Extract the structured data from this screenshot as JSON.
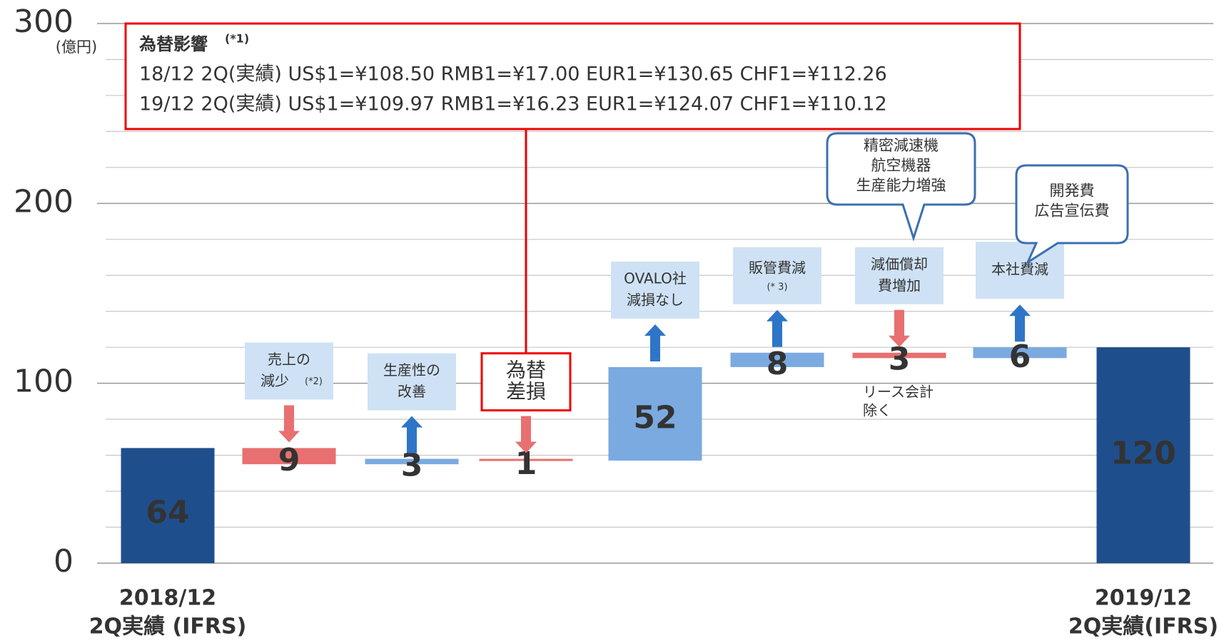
{
  "chart_data": {
    "type": "waterfall",
    "unit_label": "(億円)",
    "categories": [
      [
        "2018/12",
        "2Q実績 (IFRS)"
      ],
      null,
      null,
      null,
      null,
      null,
      null,
      null,
      [
        "2019/12",
        "2Q実績(IFRS)"
      ]
    ],
    "values": [
      64,
      -9,
      3,
      -1,
      52,
      8,
      -3,
      6,
      120
    ],
    "value_labels": [
      "64",
      "9",
      "3",
      "1",
      "52",
      "8",
      "3",
      "6",
      "120"
    ],
    "totals": [
      0,
      8
    ],
    "colors": {
      "total": "#1f4e8c",
      "increase": "#7aaae0",
      "decrease": "#e87070"
    },
    "notes": [
      null,
      {
        "lines": [
          "売上の",
          "減少"
        ],
        "footnote": "(*2)"
      },
      {
        "lines": [
          "生産性の",
          "改善"
        ]
      },
      {
        "lines": [
          "為替",
          "差損"
        ]
      },
      {
        "lines": [
          "OVALO社",
          "減損なし"
        ]
      },
      {
        "lines": [
          "販管費減"
        ],
        "footnote": "(* 3)"
      },
      {
        "lines": [
          "減価償却",
          "費増加"
        ]
      },
      {
        "lines": [
          "本社費減"
        ]
      },
      null
    ],
    "callouts": [
      {
        "lines": [
          "精密減速機",
          "航空機器",
          "生産能力増強"
        ]
      },
      {
        "lines": [
          "開発費",
          "広告宣伝費"
        ]
      },
      {
        "lines": [
          "リース会計",
          "除く"
        ]
      }
    ],
    "fx_box": {
      "title": "為替影響",
      "footnote": "(*1)",
      "lines": [
        "18/12 2Q(実績)  US$1=¥108.50 RMB1=¥17.00 EUR1=¥130.65 CHF1=¥112.26",
        "19/12 2Q(実績)  US$1=¥109.97 RMB1=¥16.23 EUR1=¥124.07 CHF1=¥110.12"
      ]
    },
    "ylim": [
      0,
      300
    ],
    "yticks": [
      0,
      100,
      200,
      300
    ],
    "yminorticks": [
      20,
      40,
      60,
      80,
      120,
      140,
      160,
      180,
      220,
      240,
      260,
      280
    ],
    "grid": true
  }
}
